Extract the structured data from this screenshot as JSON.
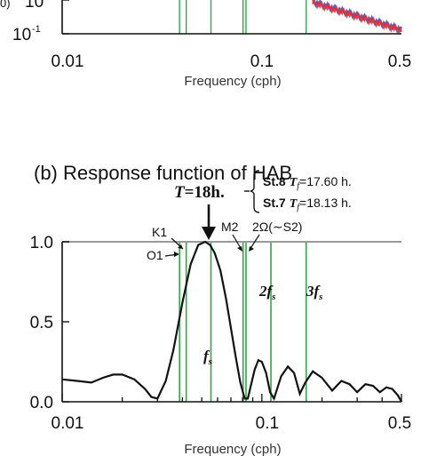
{
  "top_panel": {
    "y_ticks": [
      "10",
      "10"
    ],
    "y_tick_exponents": [
      "0",
      "-1"
    ],
    "y_label_fragment": "0)",
    "x_ticks": [
      "0.01",
      "0.1",
      "0.5"
    ],
    "xlabel": "Frequency (cph)",
    "series_colors": [
      "#3050c8",
      "#e83030"
    ],
    "line_color": "#2ea84a"
  },
  "chart_data": {
    "type": "line",
    "title": "(b) Response function of HAB",
    "xlabel": "Frequency (cph)",
    "ylabel": "",
    "x_scale": "log",
    "xlim": [
      0.01,
      0.5
    ],
    "ylim": [
      0.0,
      1.0
    ],
    "x_ticks": [
      "0.01",
      "0.1",
      "0.5"
    ],
    "y_ticks": [
      "0.0",
      "0.5",
      "1.0"
    ],
    "reference_line": {
      "y": 1.0,
      "color": "#9a9a9a"
    },
    "series": [
      {
        "color": "#111111",
        "x": [
          0.01,
          0.012,
          0.014,
          0.016,
          0.018,
          0.02,
          0.023,
          0.026,
          0.028,
          0.03,
          0.033,
          0.036,
          0.04,
          0.044,
          0.048,
          0.052,
          0.055,
          0.058,
          0.062,
          0.066,
          0.07,
          0.074,
          0.078,
          0.082,
          0.085,
          0.088,
          0.092,
          0.096,
          0.1,
          0.105,
          0.11,
          0.115,
          0.125,
          0.135,
          0.145,
          0.155,
          0.165,
          0.18,
          0.2,
          0.225,
          0.25,
          0.275,
          0.3,
          0.33,
          0.36,
          0.39,
          0.42,
          0.45,
          0.48,
          0.5
        ],
        "y": [
          0.14,
          0.13,
          0.12,
          0.15,
          0.17,
          0.17,
          0.14,
          0.08,
          0.03,
          0.02,
          0.13,
          0.32,
          0.62,
          0.86,
          0.98,
          1.0,
          0.98,
          0.93,
          0.82,
          0.65,
          0.46,
          0.28,
          0.12,
          0.02,
          0.02,
          0.1,
          0.2,
          0.26,
          0.25,
          0.18,
          0.06,
          0.02,
          0.16,
          0.22,
          0.18,
          0.05,
          0.12,
          0.19,
          0.15,
          0.07,
          0.13,
          0.11,
          0.06,
          0.11,
          0.1,
          0.06,
          0.09,
          0.08,
          0.04,
          0.0
        ]
      }
    ],
    "marker_lines": {
      "color": "#2ea84a",
      "x": [
        0.0387,
        0.0418,
        0.0556,
        0.0805,
        0.0833,
        0.111,
        0.1667
      ]
    },
    "annotations": {
      "period_eq": "=18h.",
      "period_T": "T",
      "stations": [
        {
          "name": "St.8",
          "tf_symbol": "T",
          "tf_sub": "f",
          "value": "=17.60 h."
        },
        {
          "name": "St.7",
          "tf_symbol": "T",
          "tf_sub": "f",
          "value": "=18.13 h."
        }
      ],
      "k1": "K1",
      "o1": "O1",
      "m2": "M2",
      "omega": "2Ω(∼S2)",
      "fs": "f",
      "fs_sub": "s",
      "two_fs": "2f",
      "three_fs": "3f",
      "harmonic_sub": "s"
    }
  }
}
